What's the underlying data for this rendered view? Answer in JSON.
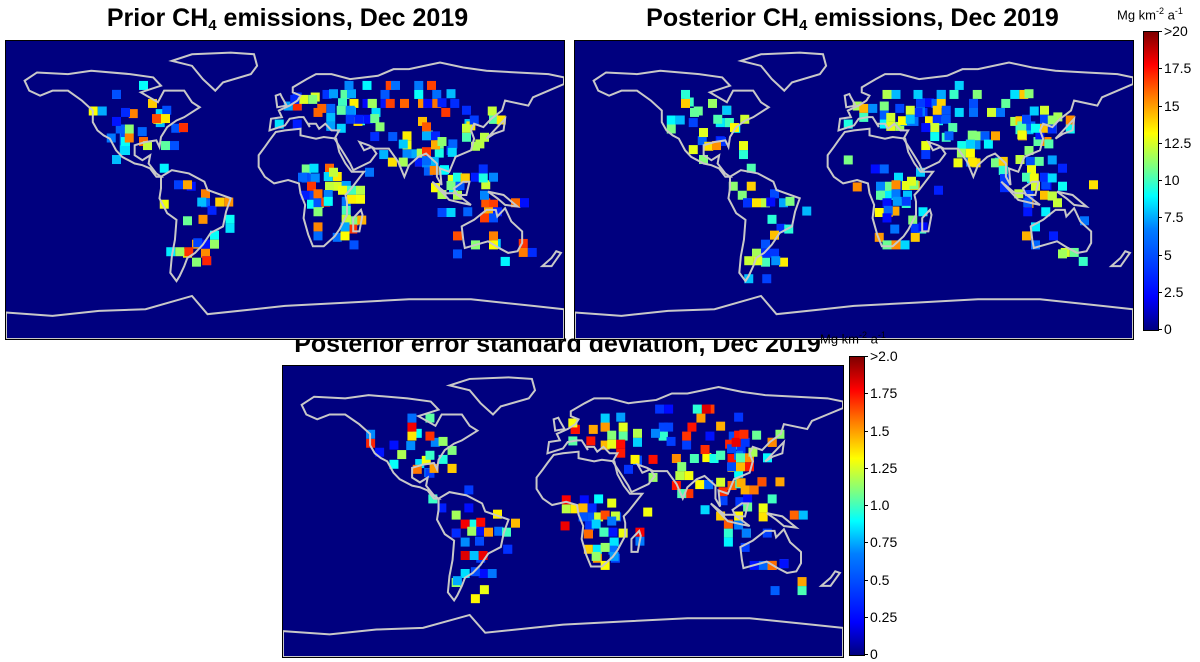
{
  "panels": {
    "prior": {
      "title": "Prior CH",
      "sub": "4",
      "suffix": " emissions, Dec 2019"
    },
    "posterior": {
      "title": "Posterior CH",
      "sub": "4",
      "suffix": " emissions, Dec 2019"
    },
    "error": {
      "title": "Posterior error standard deviation, Dec 2019"
    }
  },
  "colorbar_top": {
    "unit_base": "Mg km",
    "unit_exp1": "-2",
    "unit_mid": " a",
    "unit_exp2": "-1",
    "ticks": [
      ">20",
      "17.5",
      "15",
      "12.5",
      "10",
      "7.5",
      "5",
      "2.5",
      "0"
    ]
  },
  "colorbar_bottom": {
    "unit_base": "Mg km",
    "unit_exp1": "-2",
    "unit_mid": " a",
    "unit_exp2": "-1",
    "ticks": [
      ">2.0",
      "1.75",
      "1.5",
      "1.25",
      "1.0",
      "0.75",
      "0.5",
      "0.25",
      "0"
    ]
  },
  "colors": {
    "ocean": "#00007f",
    "coast": "#c8c8c8"
  }
}
